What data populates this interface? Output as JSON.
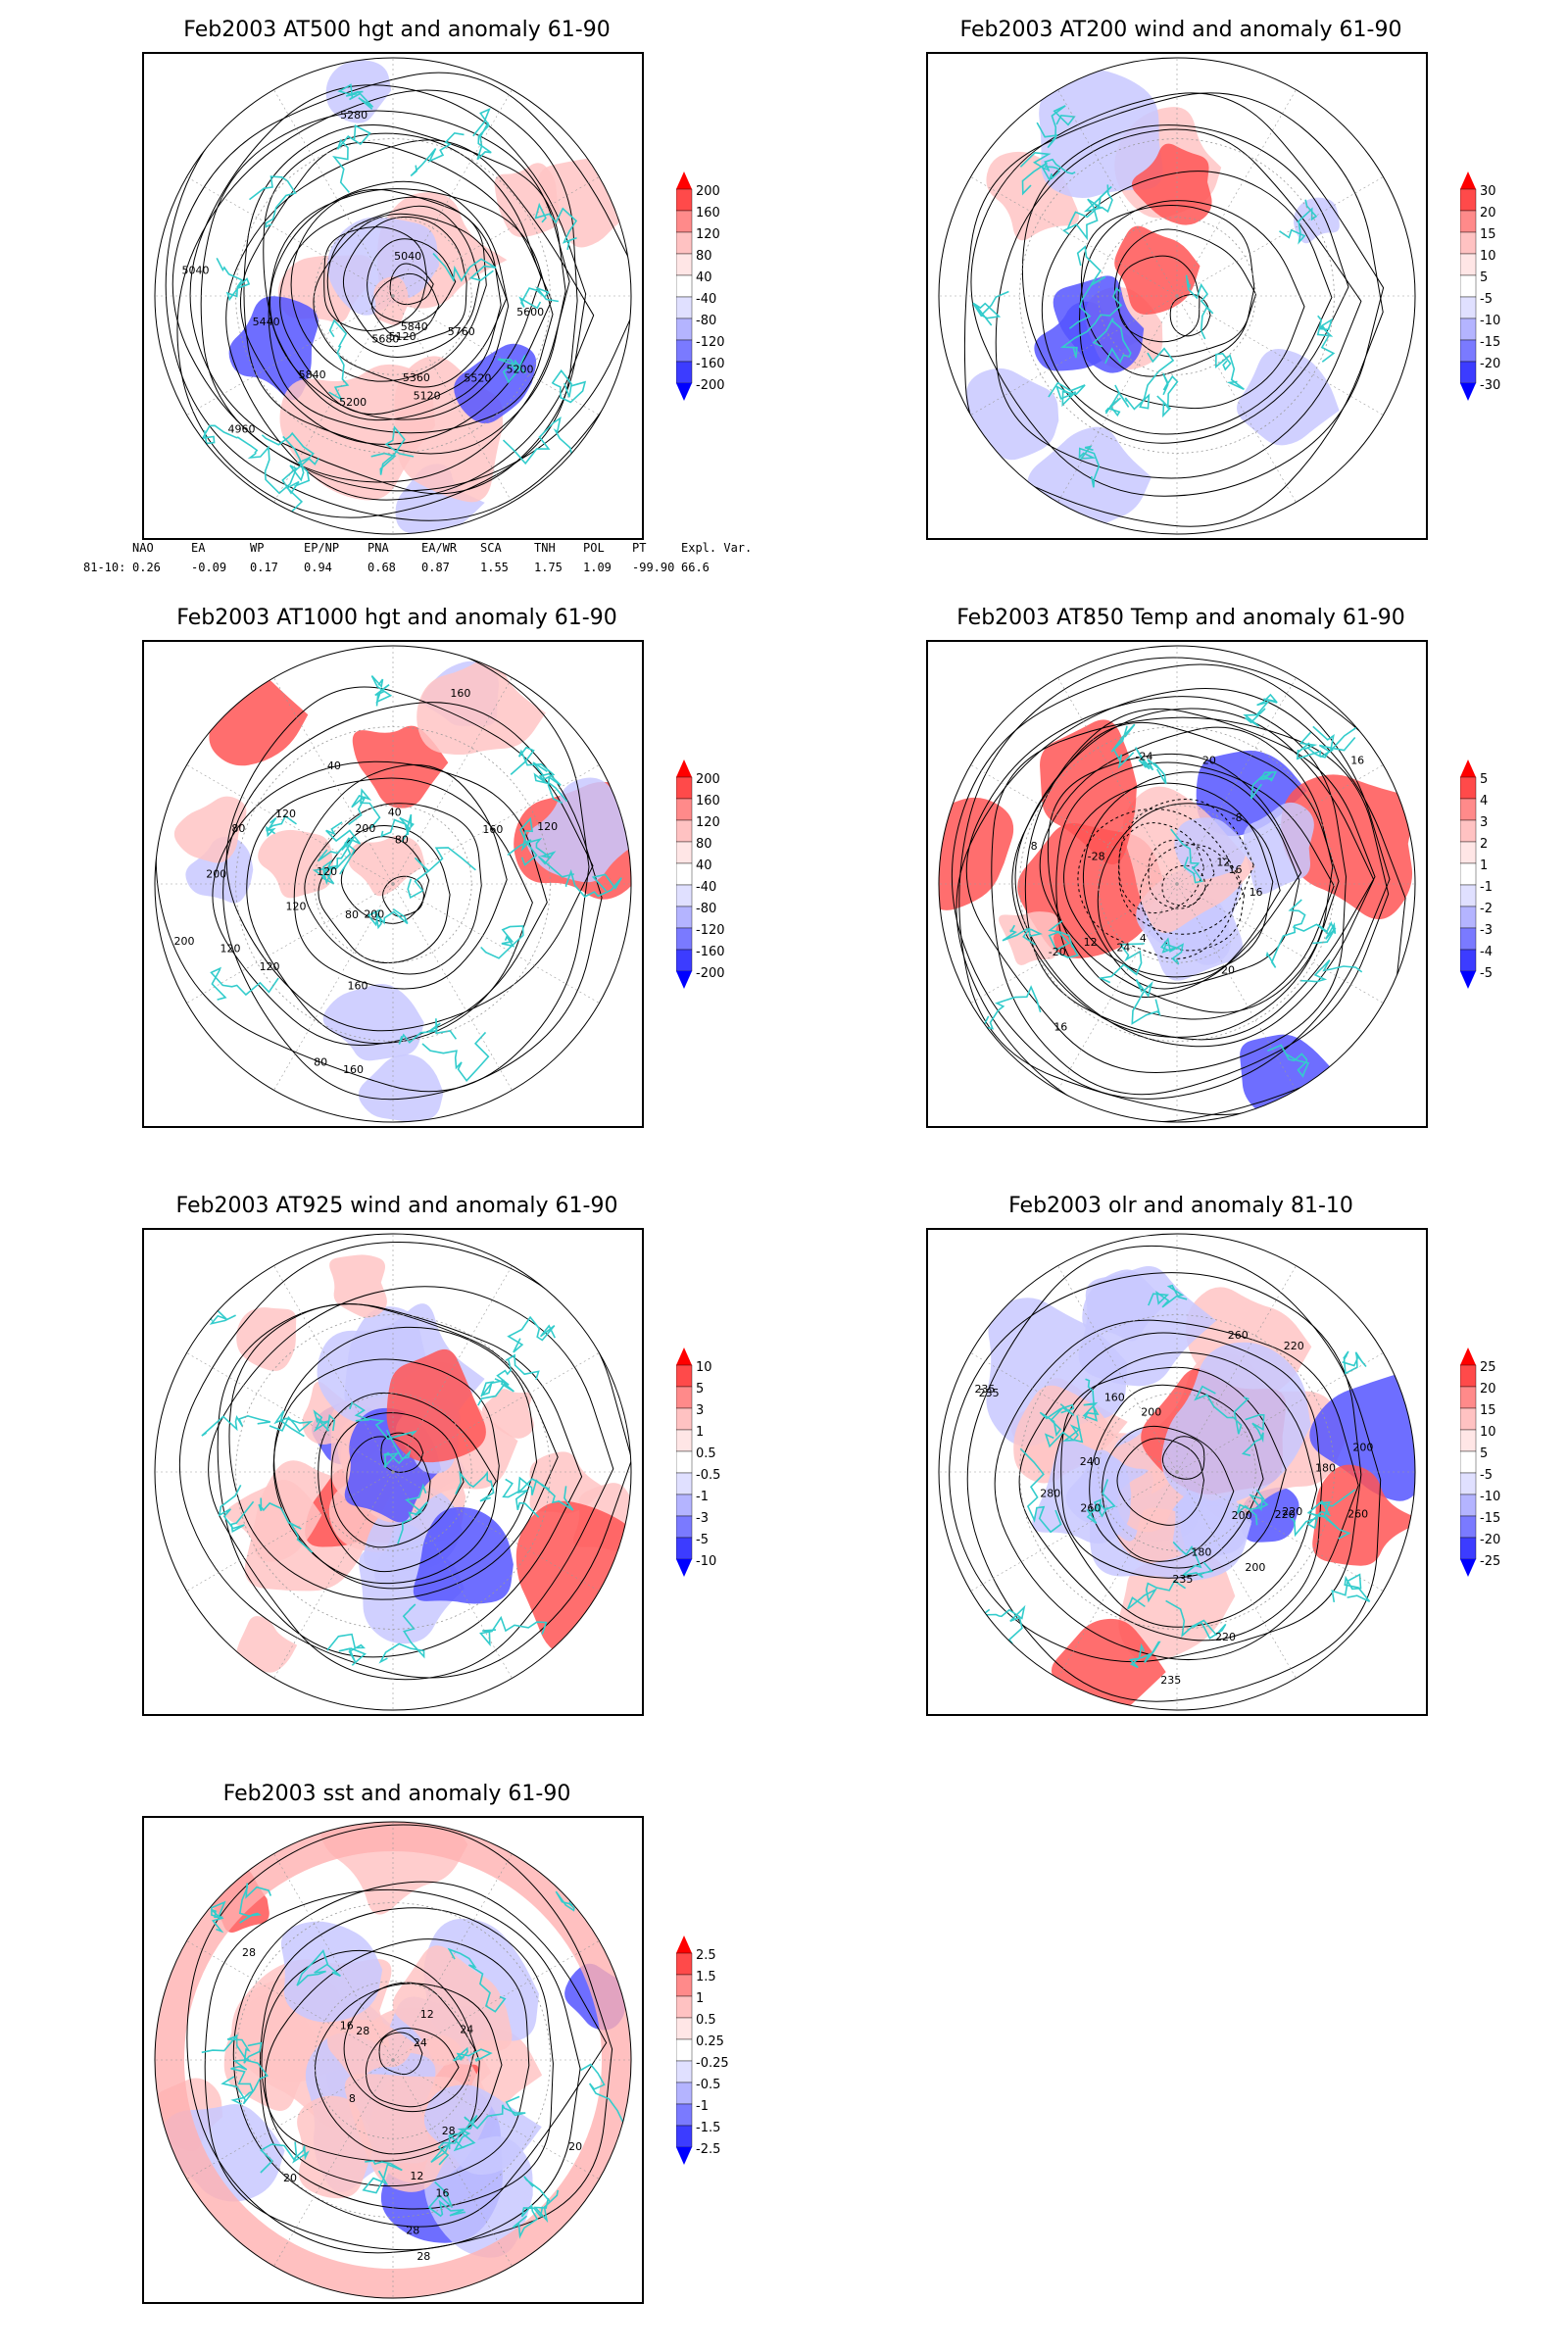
{
  "panels": [
    {
      "title": "Feb2003 AT500 hgt and anomaly 61-90",
      "colorbar": [
        "200",
        "160",
        "120",
        "80",
        "40",
        "-40",
        "-80",
        "-120",
        "-160",
        "-200"
      ],
      "contour_labels": [
        "5840",
        "5200",
        "5120",
        "5120",
        "5040",
        "5040",
        "4960",
        "5200",
        "5280",
        "5360",
        "5440",
        "5520",
        "5600",
        "5680",
        "5760",
        "5840"
      ]
    },
    {
      "title": "Feb2003 AT200 wind and anomaly 61-90",
      "colorbar": [
        "30",
        "20",
        "15",
        "10",
        "5",
        "-5",
        "-10",
        "-15",
        "-20",
        "-30"
      ],
      "contour_labels": []
    },
    {
      "title": "Feb2003 AT1000 hgt and anomaly 61-90",
      "colorbar": [
        "200",
        "160",
        "120",
        "80",
        "40",
        "-40",
        "-80",
        "-120",
        "-160",
        "-200"
      ],
      "contour_labels": [
        "80",
        "80",
        "120",
        "40",
        "160",
        "120",
        "200",
        "160",
        "160",
        "200",
        "120",
        "200",
        "120",
        "80",
        "120",
        "40",
        "200",
        "160",
        "120",
        "80"
      ]
    },
    {
      "title": "Feb2003 AT850 Temp and anomaly 61-90",
      "colorbar": [
        "5",
        "4",
        "3",
        "2",
        "1",
        "-1",
        "-2",
        "-3",
        "-4",
        "-5"
      ],
      "contour_labels": [
        "16",
        "12",
        "4",
        "8",
        "16",
        "-28",
        "-24",
        "-20",
        "-16",
        "-8",
        "16",
        "12",
        "24",
        "20",
        "20"
      ]
    },
    {
      "title": "Feb2003 AT925 wind and anomaly 61-90",
      "colorbar": [
        "10",
        "5",
        "3",
        "1",
        "0.5",
        "-0.5",
        "-1",
        "-3",
        "-5",
        "-10"
      ],
      "contour_labels": []
    },
    {
      "title": "Feb2003 olr and anomaly 81-10",
      "colorbar": [
        "25",
        "20",
        "15",
        "10",
        "5",
        "-5",
        "-10",
        "-15",
        "-20",
        "-25"
      ],
      "contour_labels": [
        "235",
        "200",
        "235",
        "220",
        "260",
        "235",
        "200",
        "220",
        "180",
        "200",
        "160",
        "180",
        "200",
        "220",
        "240",
        "260",
        "280",
        "235",
        "260",
        "220"
      ]
    },
    {
      "title": "Feb2003 sst and anomaly 61-90",
      "colorbar": [
        "2.5",
        "1.5",
        "1",
        "0.5",
        "0.25",
        "-0.25",
        "-0.5",
        "-1",
        "-1.5",
        "-2.5"
      ],
      "contour_labels": [
        "28",
        "24",
        "20",
        "16",
        "12",
        "8",
        "28",
        "28",
        "12",
        "16",
        "20",
        "24",
        "28",
        "28"
      ]
    }
  ],
  "index_table": {
    "headers": [
      "NAO",
      "EA",
      "WP",
      "EP/NP",
      "PNA",
      "EA/WR",
      "SCA",
      "TNH",
      "POL",
      "PT",
      "Expl. Var."
    ],
    "row_label": "81-10:",
    "values": [
      "0.26",
      "-0.09",
      "0.17",
      "0.94",
      "0.68",
      "0.87",
      "1.55",
      "1.75",
      "1.09",
      "-99.90",
      "66.6"
    ]
  },
  "colors": {
    "positive_strong": "#ff1a1a",
    "positive_weak": "#ffd6d6",
    "negative_weak": "#d6d6ff",
    "negative_strong": "#1a1aff",
    "coastline": "#33cccc",
    "contour": "#000000"
  }
}
